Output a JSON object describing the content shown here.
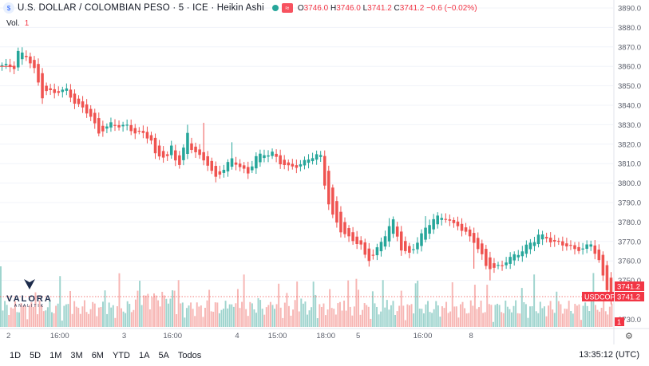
{
  "header": {
    "title": "U.S. DOLLAR / COLOMBIAN PESO · 5 · ICE · Heikin Ashi",
    "ohlc": {
      "o_label": "O",
      "o": "3746.0",
      "h_label": "H",
      "h": "3746.0",
      "l_label": "L",
      "l": "3741.2",
      "c_label": "C",
      "c": "3741.2",
      "change": "−0.6 (−0.02%)"
    },
    "volume_label": "Vol.",
    "volume_value": "1"
  },
  "price_badges": {
    "last": "3741.2",
    "symbol": "USDCOP",
    "symbol_price": "3741.2",
    "volume": "1"
  },
  "watermark": {
    "name": "VALORA",
    "sub": "ANALITIK"
  },
  "toolbar": {
    "ranges": [
      "1D",
      "5D",
      "1M",
      "3M",
      "6M",
      "YTD",
      "1A",
      "5A",
      "Todos"
    ],
    "clock": "13:35:12 (UTC)"
  },
  "colors": {
    "up": "#26a69a",
    "down": "#ef5350",
    "vol_up": "#9fd4ce",
    "vol_down": "#f7b6b4",
    "axis_text": "#5b5f6b",
    "grid": "#f0f3fa"
  },
  "chart_data": {
    "type": "candlestick",
    "subtype": "Heikin Ashi",
    "y_axis": {
      "ticks": [
        3730.0,
        3750.0,
        3760.0,
        3770.0,
        3780.0,
        3790.0,
        3800.0,
        3810.0,
        3820.0,
        3830.0,
        3840.0,
        3850.0,
        3860.0,
        3870.0,
        3880.0,
        3890.0
      ],
      "range": [
        3724,
        3893
      ],
      "position": "right"
    },
    "x_axis": {
      "ticks": [
        "2",
        "16:00",
        "3",
        "16:00",
        "4",
        "15:00",
        "18:00",
        "5",
        "16:00",
        "8"
      ]
    },
    "last_price": 3741.2,
    "series_path": [
      [
        0,
        3860
      ],
      [
        3,
        3860
      ],
      [
        4,
        3868
      ],
      [
        6,
        3865
      ],
      [
        8,
        3858
      ],
      [
        10,
        3845
      ],
      [
        11,
        3848
      ],
      [
        13,
        3846
      ],
      [
        16,
        3848
      ],
      [
        18,
        3842
      ],
      [
        20,
        3838
      ],
      [
        22,
        3834
      ],
      [
        24,
        3826
      ],
      [
        25,
        3828
      ],
      [
        27,
        3830
      ],
      [
        29,
        3829
      ],
      [
        31,
        3830
      ],
      [
        33,
        3826
      ],
      [
        35,
        3825
      ],
      [
        37,
        3822
      ],
      [
        38,
        3815
      ],
      [
        40,
        3814
      ],
      [
        41,
        3813
      ],
      [
        42,
        3818
      ],
      [
        43,
        3812
      ],
      [
        44,
        3810
      ],
      [
        46,
        3826
      ],
      [
        47,
        3818
      ],
      [
        49,
        3813
      ],
      [
        51,
        3810
      ],
      [
        53,
        3803
      ],
      [
        55,
        3807
      ],
      [
        57,
        3812
      ],
      [
        59,
        3809
      ],
      [
        61,
        3805
      ],
      [
        63,
        3813
      ],
      [
        65,
        3815
      ],
      [
        67,
        3816
      ],
      [
        69,
        3810
      ],
      [
        71,
        3808
      ],
      [
        74,
        3810
      ],
      [
        76,
        3812
      ],
      [
        78,
        3814
      ],
      [
        79,
        3814
      ],
      [
        80,
        3800
      ],
      [
        81,
        3790
      ],
      [
        82,
        3783
      ],
      [
        84,
        3775
      ],
      [
        86,
        3772
      ],
      [
        88,
        3770
      ],
      [
        89,
        3768
      ],
      [
        90,
        3762
      ],
      [
        91,
        3760
      ],
      [
        92,
        3763
      ],
      [
        94,
        3770
      ],
      [
        96,
        3778
      ],
      [
        97,
        3780
      ],
      [
        98,
        3772
      ],
      [
        99,
        3766
      ],
      [
        101,
        3764
      ],
      [
        103,
        3770
      ],
      [
        105,
        3776
      ],
      [
        107,
        3782
      ],
      [
        108,
        3783
      ],
      [
        110,
        3782
      ],
      [
        112,
        3778
      ],
      [
        113,
        3778
      ],
      [
        115,
        3775
      ],
      [
        117,
        3770
      ],
      [
        119,
        3762
      ],
      [
        120,
        3757
      ],
      [
        122,
        3757
      ],
      [
        124,
        3758
      ],
      [
        126,
        3761
      ],
      [
        128,
        3764
      ],
      [
        130,
        3768
      ],
      [
        132,
        3770
      ],
      [
        133,
        3773
      ],
      [
        135,
        3772
      ],
      [
        137,
        3770
      ],
      [
        139,
        3768
      ],
      [
        141,
        3767
      ],
      [
        142,
        3766
      ],
      [
        144,
        3767
      ],
      [
        146,
        3768
      ],
      [
        147,
        3764
      ],
      [
        148,
        3760
      ],
      [
        149,
        3752
      ],
      [
        150,
        3746
      ],
      [
        151,
        3741
      ]
    ],
    "spikes": [
      [
        46,
        3830
      ],
      [
        49,
        3820
      ],
      [
        50,
        3831
      ],
      [
        57,
        3821
      ],
      [
        96,
        3782
      ],
      [
        105,
        3783
      ],
      [
        117,
        3756
      ],
      [
        121,
        3750
      ],
      [
        99,
        3768
      ]
    ],
    "bars": 152
  }
}
